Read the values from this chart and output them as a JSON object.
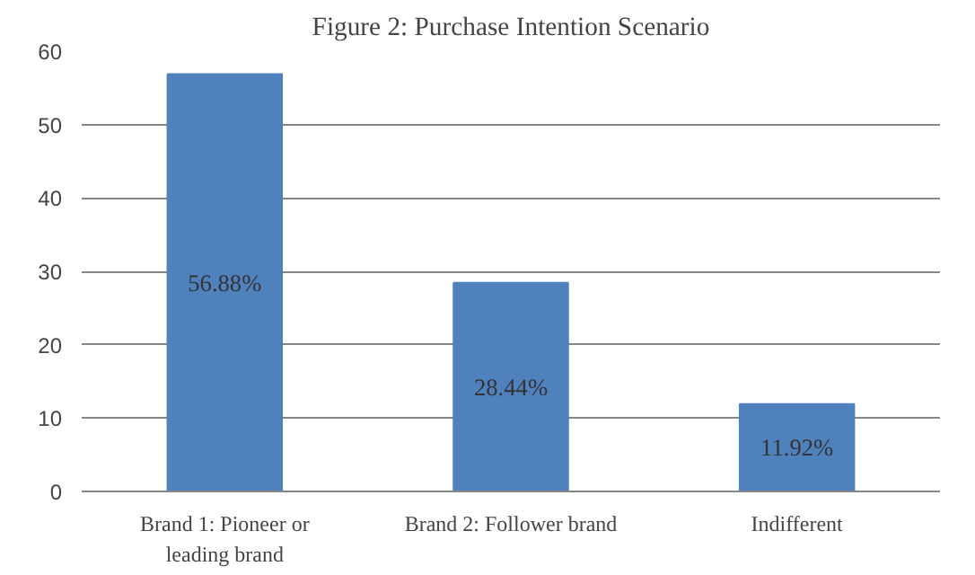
{
  "chart_data": {
    "type": "bar",
    "title": "Figure 2: Purchase Intention Scenario",
    "categories": [
      "Brand 1: Pioneer or leading brand",
      "Brand 2: Follower brand",
      "Indifferent"
    ],
    "values": [
      56.88,
      28.44,
      11.92
    ],
    "color": "#4f81bd",
    "value_labels": [
      "56.88%",
      "28.44%",
      "11.92%"
    ],
    "ylim": [
      0,
      60
    ],
    "yticks": [
      0,
      10,
      20,
      30,
      40,
      50,
      60
    ],
    "grid": "y"
  }
}
